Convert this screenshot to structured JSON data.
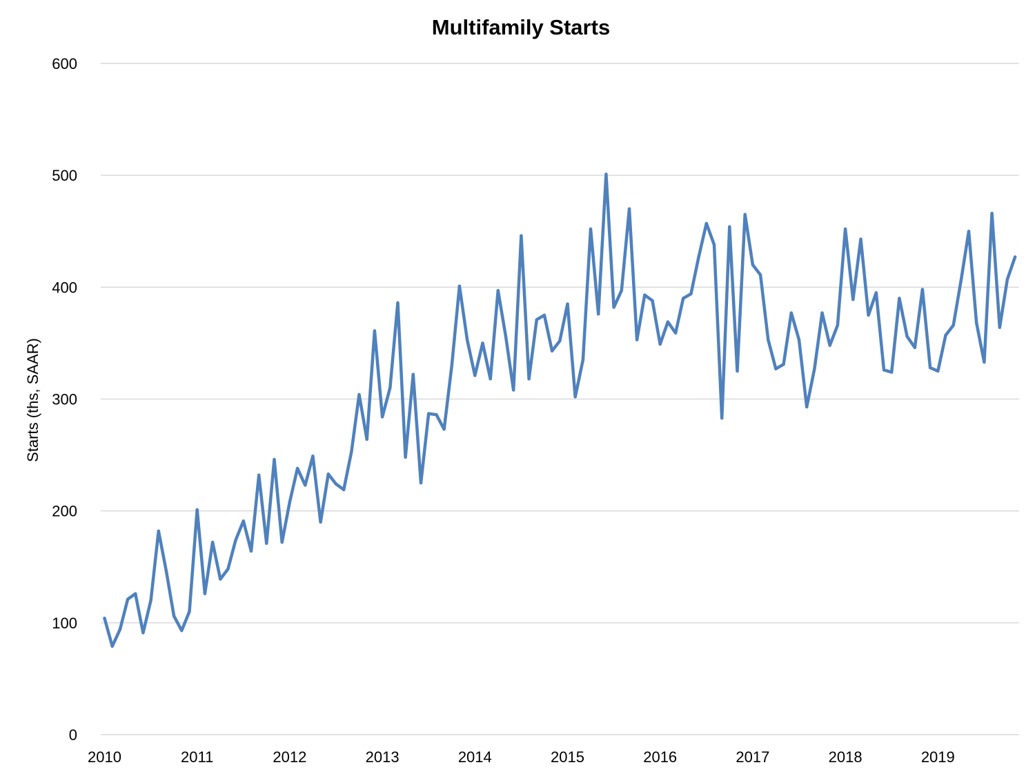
{
  "chart_data": {
    "type": "line",
    "title": "Multifamily Starts",
    "ylabel": "Starts (ths, SAAR)",
    "xlabel": "",
    "ylim": [
      0,
      600
    ],
    "yticks": [
      0,
      100,
      200,
      300,
      400,
      500,
      600
    ],
    "xticks": [
      "2010",
      "2011",
      "2012",
      "2013",
      "2014",
      "2015",
      "2016",
      "2017",
      "2018",
      "2019"
    ],
    "x_start_year": 2010,
    "periods_per_year": 12,
    "grid": true,
    "legend": "none",
    "series": [
      {
        "color": "#4f81bd",
        "values": [
          104,
          79,
          94,
          121,
          126,
          91,
          120,
          182,
          146,
          106,
          93,
          110,
          201,
          126,
          172,
          139,
          148,
          174,
          191,
          164,
          232,
          171,
          246,
          172,
          208,
          238,
          223,
          249,
          190,
          233,
          224,
          219,
          253,
          304,
          264,
          361,
          284,
          310,
          386,
          248,
          322,
          225,
          287,
          286,
          273,
          330,
          401,
          353,
          321,
          350,
          318,
          397,
          356,
          308,
          446,
          318,
          371,
          375,
          343,
          352,
          385,
          302,
          335,
          452,
          376,
          501,
          382,
          397,
          470,
          353,
          393,
          388,
          349,
          369,
          359,
          390,
          394,
          427,
          457,
          438,
          283,
          454,
          325,
          465,
          420,
          411,
          353,
          327,
          331,
          377,
          353,
          293,
          327,
          377,
          348,
          366,
          452,
          389,
          443,
          375,
          395,
          326,
          324,
          390,
          356,
          346,
          398,
          328,
          325,
          357,
          366,
          406,
          450,
          368,
          333,
          466,
          364,
          407,
          427
        ]
      }
    ]
  }
}
